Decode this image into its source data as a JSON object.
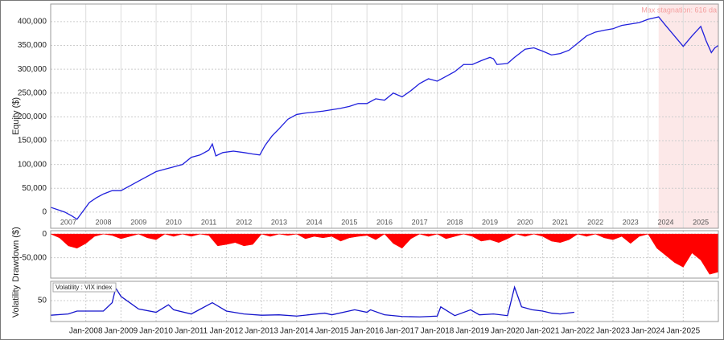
{
  "chart_data": [
    {
      "type": "line",
      "ylabel": "Equity ($)",
      "color": "#2020dd",
      "grid": true,
      "xlim": [
        2007,
        2026
      ],
      "ylim": [
        -34000,
        437000
      ],
      "xticks": [
        2007,
        2008,
        2009,
        2010,
        2011,
        2012,
        2013,
        2014,
        2015,
        2016,
        2017,
        2018,
        2019,
        2020,
        2021,
        2022,
        2023,
        2024,
        2025
      ],
      "yticks": [
        0,
        {
          "value": 50000,
          "label": "50,000"
        },
        {
          "value": 100000,
          "label": "100,000"
        },
        {
          "value": 150000,
          "label": "150,000"
        },
        {
          "value": 200000,
          "label": "200,000"
        },
        {
          "value": 250000,
          "label": "250,000"
        },
        {
          "value": 300000,
          "label": "300,000"
        },
        {
          "value": 350000,
          "label": "350,000"
        },
        {
          "value": 400000,
          "label": "400,000"
        }
      ],
      "highlight": {
        "x": [
          2024.3,
          2026
        ],
        "label": "Max stagnation: 616 da",
        "color": "#fce8e8"
      },
      "x": [
        2007.0,
        2007.2,
        2007.4,
        2007.6,
        2007.75,
        2007.9,
        2008.1,
        2008.3,
        2008.5,
        2008.75,
        2009.0,
        2009.25,
        2009.5,
        2009.75,
        2010.0,
        2010.25,
        2010.5,
        2010.75,
        2011.0,
        2011.25,
        2011.5,
        2011.6,
        2011.7,
        2011.9,
        2012.2,
        2012.5,
        2012.75,
        2012.95,
        2013.1,
        2013.3,
        2013.5,
        2013.75,
        2014.0,
        2014.25,
        2014.5,
        2014.75,
        2015.0,
        2015.25,
        2015.5,
        2015.75,
        2016.0,
        2016.25,
        2016.5,
        2016.75,
        2017.0,
        2017.25,
        2017.5,
        2017.75,
        2018.0,
        2018.25,
        2018.5,
        2018.75,
        2019.0,
        2019.25,
        2019.5,
        2019.6,
        2019.7,
        2020.0,
        2020.2,
        2020.5,
        2020.75,
        2021.0,
        2021.25,
        2021.5,
        2021.75,
        2022.0,
        2022.25,
        2022.5,
        2022.75,
        2023.0,
        2023.25,
        2023.5,
        2023.75,
        2024.0,
        2024.3,
        2024.5,
        2024.75,
        2025.0,
        2025.25,
        2025.5,
        2025.65,
        2025.8,
        2025.9,
        2026.0
      ],
      "values": [
        10000,
        5000,
        0,
        -8000,
        -15000,
        0,
        20000,
        30000,
        38000,
        45000,
        45000,
        55000,
        65000,
        75000,
        85000,
        90000,
        95000,
        100000,
        115000,
        120000,
        130000,
        143000,
        118000,
        125000,
        128000,
        125000,
        122000,
        120000,
        140000,
        160000,
        175000,
        195000,
        205000,
        208000,
        210000,
        212000,
        215000,
        218000,
        222000,
        228000,
        228000,
        238000,
        235000,
        250000,
        242000,
        255000,
        270000,
        280000,
        275000,
        285000,
        295000,
        310000,
        310000,
        318000,
        325000,
        322000,
        310000,
        312000,
        325000,
        342000,
        345000,
        338000,
        330000,
        333000,
        340000,
        355000,
        370000,
        378000,
        382000,
        385000,
        392000,
        395000,
        398000,
        405000,
        410000,
        392000,
        370000,
        348000,
        370000,
        390000,
        360000,
        335000,
        345000,
        350000
      ]
    },
    {
      "type": "area",
      "ylabel": "Drawdown ($)",
      "color": "#ff0000",
      "grid": true,
      "xlim": [
        2007,
        2026
      ],
      "ylim": [
        -93000,
        7000
      ],
      "yticks": [
        0,
        {
          "value": -50000,
          "label": "-50,000"
        }
      ],
      "x": [
        2007.0,
        2007.25,
        2007.5,
        2007.75,
        2008.0,
        2008.25,
        2008.5,
        2008.75,
        2009.0,
        2009.25,
        2009.5,
        2009.75,
        2010.0,
        2010.25,
        2010.5,
        2010.75,
        2011.0,
        2011.25,
        2011.5,
        2011.75,
        2012.0,
        2012.25,
        2012.5,
        2012.75,
        2013.0,
        2013.25,
        2013.5,
        2013.75,
        2014.0,
        2014.25,
        2014.5,
        2014.75,
        2015.0,
        2015.25,
        2015.5,
        2015.75,
        2016.0,
        2016.25,
        2016.5,
        2016.75,
        2017.0,
        2017.25,
        2017.5,
        2017.75,
        2018.0,
        2018.25,
        2018.5,
        2018.75,
        2019.0,
        2019.25,
        2019.5,
        2019.75,
        2020.0,
        2020.25,
        2020.5,
        2020.75,
        2021.0,
        2021.25,
        2021.5,
        2021.75,
        2022.0,
        2022.25,
        2022.5,
        2022.75,
        2023.0,
        2023.25,
        2023.5,
        2023.75,
        2024.0,
        2024.25,
        2024.5,
        2024.75,
        2025.0,
        2025.25,
        2025.5,
        2025.75,
        2026.0
      ],
      "values": [
        0,
        -8000,
        -25000,
        -30000,
        -20000,
        -5000,
        0,
        -3000,
        -10000,
        -5000,
        0,
        -8000,
        -12000,
        0,
        -5000,
        0,
        -5000,
        0,
        -3000,
        -25000,
        -22000,
        -18000,
        -25000,
        -22000,
        0,
        -5000,
        0,
        -3000,
        0,
        -10000,
        -5000,
        -8000,
        -5000,
        -15000,
        -8000,
        -5000,
        -3000,
        -12000,
        0,
        -20000,
        -30000,
        -10000,
        0,
        -5000,
        0,
        -10000,
        -5000,
        0,
        -5000,
        -15000,
        -12000,
        -18000,
        -10000,
        0,
        -5000,
        0,
        -5000,
        -15000,
        -18000,
        -12000,
        0,
        -5000,
        0,
        -8000,
        -12000,
        -5000,
        -20000,
        -5000,
        0,
        -30000,
        -45000,
        -60000,
        -70000,
        -40000,
        -55000,
        -85000,
        -80000
      ]
    },
    {
      "type": "line",
      "ylabel": "Volatility",
      "grid": true,
      "xlim": [
        2007,
        2026
      ],
      "ylim": [
        0,
        96
      ],
      "yticks": [
        50
      ],
      "xticks": [
        {
          "value": 2008,
          "label": "Jan-2008"
        },
        {
          "value": 2009,
          "label": "Jan-2009"
        },
        {
          "value": 2010,
          "label": "Jan-2010"
        },
        {
          "value": 2011,
          "label": "Jan-2011"
        },
        {
          "value": 2012,
          "label": "Jan-2012"
        },
        {
          "value": 2013,
          "label": "Jan-2013"
        },
        {
          "value": 2014,
          "label": "Jan-2014"
        },
        {
          "value": 2015,
          "label": "Jan-2015"
        },
        {
          "value": 2016,
          "label": "Jan-2016"
        },
        {
          "value": 2017,
          "label": "Jan-2017"
        },
        {
          "value": 2018,
          "label": "Jan-2018"
        },
        {
          "value": 2019,
          "label": "Jan-2019"
        },
        {
          "value": 2020,
          "label": "Jan-2020"
        },
        {
          "value": 2021,
          "label": "Jan-2021"
        },
        {
          "value": 2022,
          "label": "Jan-2022"
        },
        {
          "value": 2023,
          "label": "Jan-2023"
        },
        {
          "value": 2024,
          "label": "Jan-2024"
        },
        {
          "value": 2025,
          "label": "Jan-2025"
        }
      ],
      "x": [
        2007.0,
        2007.5,
        2007.75,
        2008.0,
        2008.5,
        2008.75,
        2008.85,
        2009.0,
        2009.25,
        2009.5,
        2010.0,
        2010.35,
        2010.5,
        2011.0,
        2011.6,
        2011.8,
        2012.0,
        2012.5,
        2013.0,
        2013.5,
        2014.0,
        2014.8,
        2015.0,
        2015.65,
        2016.0,
        2016.1,
        2016.5,
        2017.0,
        2017.5,
        2018.0,
        2018.1,
        2018.5,
        2018.95,
        2019.2,
        2019.6,
        2020.0,
        2020.2,
        2020.4,
        2020.7,
        2021.0,
        2021.25,
        2021.5,
        2021.9
      ],
      "series": [
        {
          "name": "Volatility : VIX index",
          "color": "#1515cc",
          "values": [
            15,
            18,
            25,
            25,
            25,
            45,
            80,
            60,
            45,
            30,
            22,
            40,
            28,
            18,
            45,
            35,
            25,
            18,
            15,
            16,
            13,
            20,
            16,
            28,
            22,
            28,
            16,
            12,
            11,
            13,
            35,
            14,
            28,
            16,
            18,
            14,
            82,
            35,
            28,
            25,
            20,
            18,
            22
          ]
        }
      ]
    }
  ]
}
